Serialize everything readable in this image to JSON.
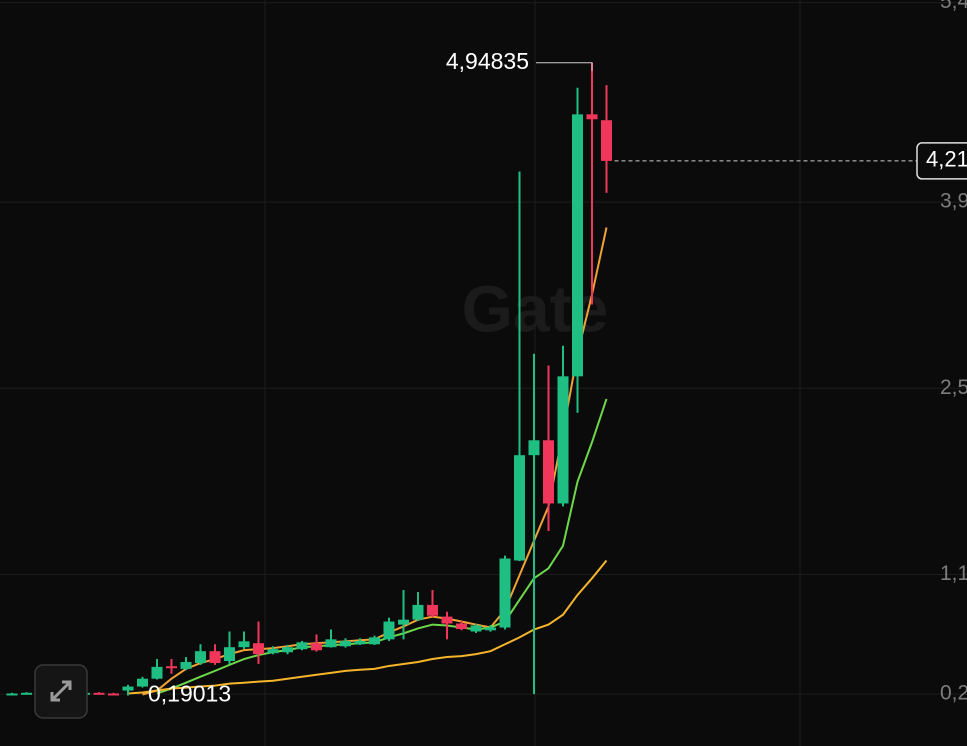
{
  "chart_data": {
    "type": "candlestick",
    "watermark": "Gate",
    "ylim": [
      -0.19,
      5.42
    ],
    "yticks": [
      {
        "value": 5.4,
        "label": "5,4"
      },
      {
        "value": 3.9,
        "label": "3,9"
      },
      {
        "value": 2.5,
        "label": "2,5"
      },
      {
        "value": 1.1,
        "label": "1,1"
      },
      {
        "value": 0.2,
        "label": "0,2"
      }
    ],
    "grid": true,
    "up_color": "#1fbf84",
    "down_color": "#f0375b",
    "open": [
      0.2,
      0.205,
      0.21,
      0.205,
      0.2,
      0.205,
      0.21,
      0.205,
      0.227,
      0.257,
      0.316,
      0.41,
      0.39,
      0.434,
      0.523,
      0.449,
      0.553,
      0.583,
      0.508,
      0.515,
      0.538,
      0.583,
      0.553,
      0.56,
      0.575,
      0.575,
      0.612,
      0.723,
      0.76,
      0.871,
      0.783,
      0.731,
      0.671,
      0.68,
      0.701,
      1.205,
      1.997,
      2.109,
      1.634,
      2.59,
      4.56,
      4.516
    ],
    "high": [
      0.21,
      0.215,
      0.215,
      0.21,
      0.21,
      0.215,
      0.215,
      0.21,
      0.27,
      0.33,
      0.464,
      0.464,
      0.479,
      0.575,
      0.575,
      0.671,
      0.671,
      0.746,
      0.56,
      0.57,
      0.6,
      0.649,
      0.686,
      0.62,
      0.62,
      0.64,
      0.775,
      0.983,
      0.968,
      0.983,
      0.82,
      0.75,
      0.73,
      0.72,
      1.242,
      4.13,
      2.76,
      2.671,
      2.82,
      4.76,
      4.94835,
      4.78
    ],
    "low": [
      0.195,
      0.2,
      0.2,
      0.195,
      0.195,
      0.2,
      0.2,
      0.195,
      0.19013,
      0.25,
      0.31,
      0.353,
      0.38,
      0.42,
      0.42,
      0.427,
      0.54,
      0.427,
      0.5,
      0.5,
      0.53,
      0.52,
      0.55,
      0.55,
      0.57,
      0.57,
      0.6,
      0.612,
      0.75,
      0.78,
      0.612,
      0.68,
      0.66,
      0.67,
      0.686,
      1.2,
      0.2,
      1.427,
      1.612,
      2.316,
      3.13,
      3.97
    ],
    "close": [
      0.205,
      0.21,
      0.205,
      0.2,
      0.205,
      0.21,
      0.205,
      0.2,
      0.257,
      0.316,
      0.405,
      0.4,
      0.442,
      0.523,
      0.434,
      0.553,
      0.597,
      0.501,
      0.538,
      0.553,
      0.59,
      0.53,
      0.612,
      0.6,
      0.6,
      0.627,
      0.746,
      0.76,
      0.871,
      0.79,
      0.731,
      0.69,
      0.716,
      0.701,
      1.22,
      1.997,
      2.109,
      1.634,
      2.59,
      4.56,
      4.523,
      4.21
    ],
    "moving_averages": [
      {
        "color": "#f0a234",
        "values": [
          null,
          null,
          null,
          null,
          null,
          null,
          null,
          null,
          null,
          0.197,
          0.227,
          0.316,
          0.39,
          0.434,
          0.464,
          0.501,
          0.531,
          0.538,
          0.546,
          0.56,
          0.575,
          0.583,
          0.59,
          0.597,
          0.605,
          0.612,
          0.664,
          0.709,
          0.76,
          0.783,
          0.768,
          0.746,
          0.723,
          0.701,
          0.834,
          1.094,
          1.353,
          1.612,
          2.168,
          2.76,
          3.205,
          3.709
        ]
      },
      {
        "color": "#6fd84a",
        "values": [
          null,
          null,
          null,
          null,
          null,
          null,
          null,
          null,
          null,
          null,
          0.205,
          0.242,
          0.286,
          0.331,
          0.375,
          0.42,
          0.464,
          0.494,
          0.516,
          0.531,
          0.553,
          0.56,
          0.568,
          0.575,
          0.583,
          0.59,
          0.627,
          0.657,
          0.694,
          0.723,
          0.716,
          0.701,
          0.686,
          0.701,
          0.746,
          0.909,
          1.071,
          1.146,
          1.316,
          1.797,
          2.094,
          2.42
        ]
      },
      {
        "color": "#f5b52a",
        "values": [
          null,
          null,
          null,
          null,
          null,
          null,
          null,
          null,
          0.205,
          0.212,
          0.227,
          0.242,
          0.249,
          0.257,
          0.264,
          0.279,
          0.286,
          0.294,
          0.301,
          0.316,
          0.331,
          0.346,
          0.36,
          0.375,
          0.383,
          0.39,
          0.412,
          0.427,
          0.442,
          0.464,
          0.479,
          0.486,
          0.501,
          0.523,
          0.575,
          0.627,
          0.686,
          0.723,
          0.797,
          0.946,
          1.071,
          1.205
        ]
      }
    ],
    "max_label": {
      "value": 4.94835,
      "label": "4,94835"
    },
    "min_label": {
      "value": 0.19013,
      "label": "0,19013"
    },
    "current_price": {
      "value": 4.21,
      "label": "4,21"
    }
  }
}
